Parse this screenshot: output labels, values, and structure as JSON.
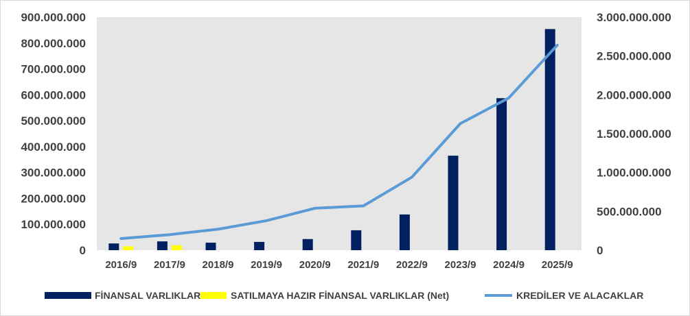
{
  "chart_data": {
    "type": "bar",
    "categories": [
      "2016/9",
      "2017/9",
      "2018/9",
      "2019/9",
      "2020/9",
      "2021/9",
      "2022/9",
      "2023/9",
      "2024/9",
      "2025/9"
    ],
    "series": [
      {
        "name": "FİNANSAL VARLIKLAR",
        "type": "bar",
        "axis": "left",
        "color": "#002060",
        "values": [
          26000000,
          34000000,
          29000000,
          32000000,
          43000000,
          77000000,
          138000000,
          365000000,
          587000000,
          854000000
        ]
      },
      {
        "name": "SATILMAYA HAZIR FİNANSAL VARLIKLAR (Net)",
        "type": "bar",
        "axis": "left",
        "color": "#ffff00",
        "values": [
          15000000,
          19000000,
          null,
          null,
          null,
          null,
          null,
          null,
          null,
          null
        ]
      },
      {
        "name": "KREDİLER VE ALACAKLAR",
        "type": "line",
        "axis": "right",
        "color": "#5b9bd5",
        "values": [
          150000000,
          200000000,
          270000000,
          380000000,
          540000000,
          570000000,
          940000000,
          1630000000,
          1960000000,
          2640000000
        ]
      }
    ],
    "y_left": {
      "min": 0,
      "max": 900000000,
      "ticks": [
        0,
        100000000,
        200000000,
        300000000,
        400000000,
        500000000,
        600000000,
        700000000,
        800000000,
        900000000
      ],
      "tick_labels": [
        "0",
        "100.000.000",
        "200.000.000",
        "300.000.000",
        "400.000.000",
        "500.000.000",
        "600.000.000",
        "700.000.000",
        "800.000.000",
        "900.000.000"
      ]
    },
    "y_right": {
      "min": 0,
      "max": 3000000000,
      "ticks": [
        0,
        500000000,
        1000000000,
        1500000000,
        2000000000,
        2500000000,
        3000000000
      ],
      "tick_labels": [
        "0",
        "500.000.000",
        "1.000.000.000",
        "1.500.000.000",
        "2.000.000.000",
        "2.500.000.000",
        "3.000.000.000"
      ]
    },
    "grid": false,
    "plot_background": "#e6e6e6",
    "legend_position": "bottom"
  }
}
